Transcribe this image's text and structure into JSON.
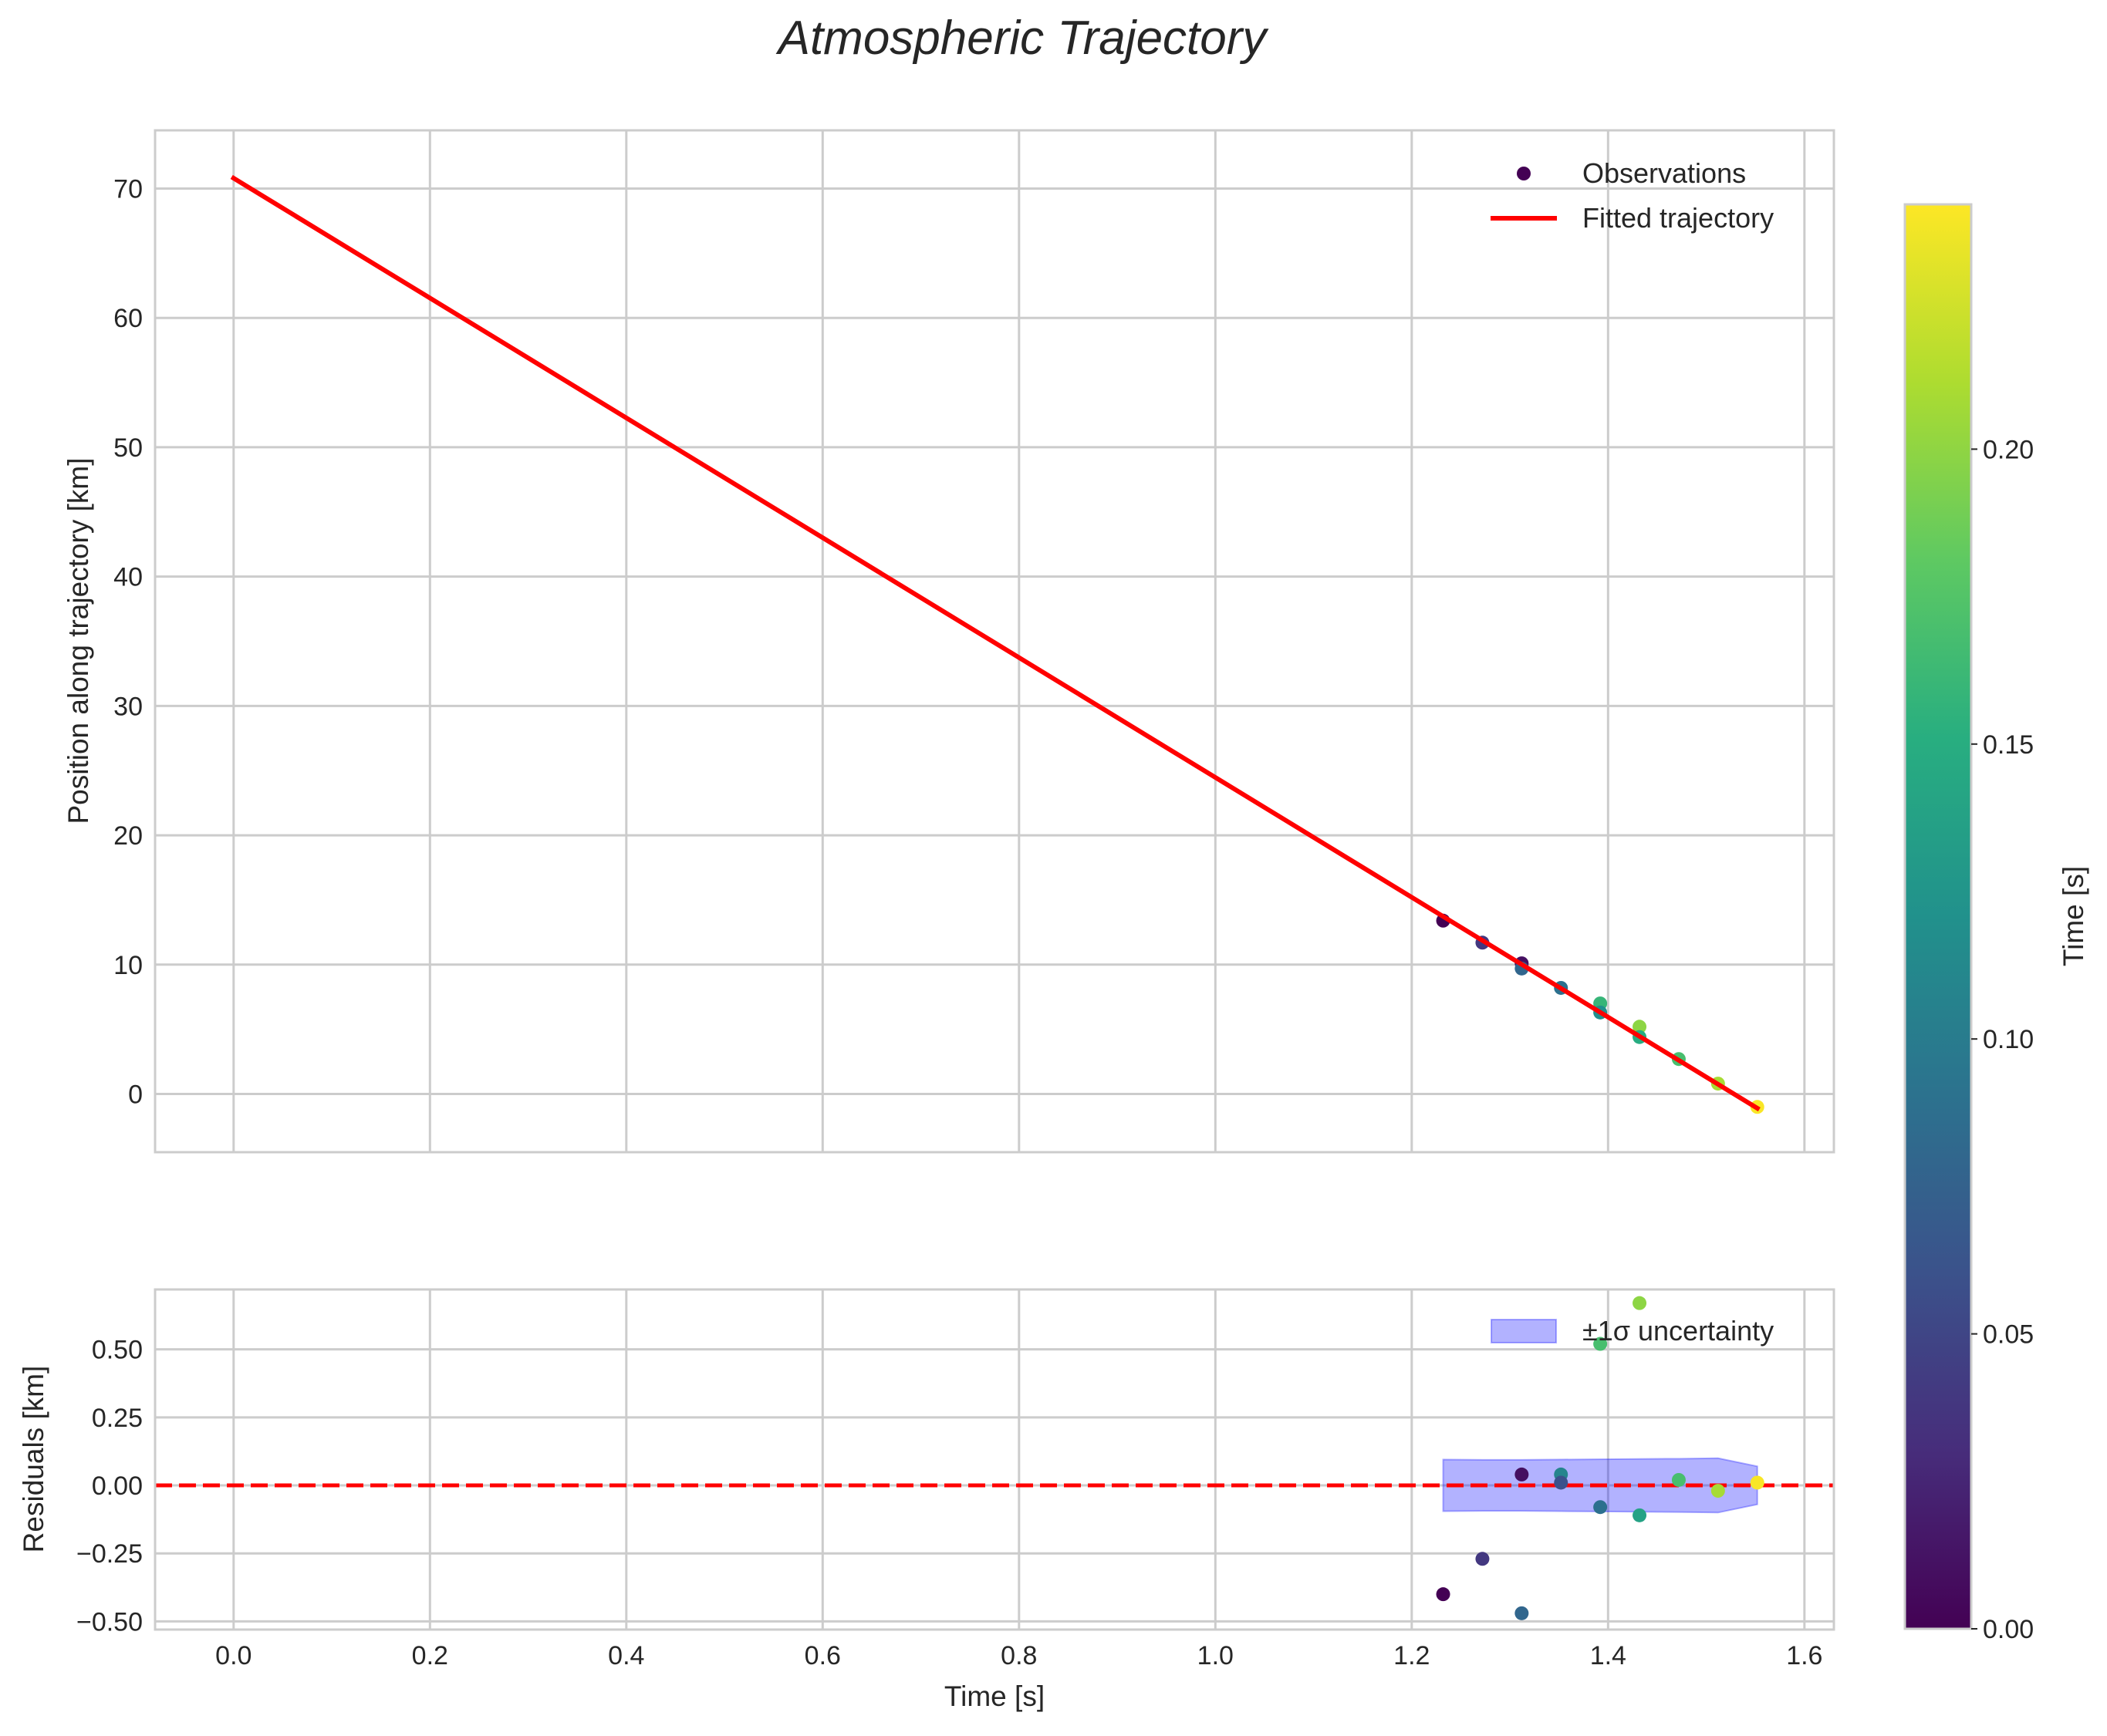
{
  "chart_data": {
    "title": "Atmospheric Trajectory",
    "colors": {
      "fit_line": "#ff0000",
      "zero_line": "#ff0000",
      "band_fill": "#0000ff",
      "grid": "#cccccc",
      "spine": "#cccccc"
    },
    "top": {
      "type": "scatter",
      "xlim": [
        -0.08,
        1.63
      ],
      "ylim": [
        -4.5,
        74.5
      ],
      "yticks": [
        0,
        10,
        20,
        30,
        40,
        50,
        60,
        70
      ],
      "ylabel": "Position along trajectory [km]",
      "observations": {
        "name": "Observations",
        "x": [
          1.232,
          1.272,
          1.312,
          1.312,
          1.352,
          1.392,
          1.392,
          1.432,
          1.432,
          1.472,
          1.512,
          1.552
        ],
        "y": [
          13.4,
          11.7,
          10.1,
          9.7,
          8.2,
          7.0,
          6.3,
          5.2,
          4.4,
          2.7,
          0.8,
          -1.0
        ],
        "t": [
          0.0,
          0.04,
          0.01,
          0.08,
          0.09,
          0.16,
          0.12,
          0.2,
          0.15,
          0.17,
          0.21,
          0.24
        ]
      },
      "fit": {
        "name": "Fitted trajectory",
        "x": [
          0.0,
          1.552
        ],
        "y": [
          70.8,
          -1.1
        ]
      }
    },
    "bottom": {
      "type": "scatter",
      "xlim": [
        -0.08,
        1.63
      ],
      "ylim": [
        -0.53,
        0.72
      ],
      "yticks": [
        -0.5,
        -0.25,
        0.0,
        0.25,
        0.5
      ],
      "ytick_labels": [
        "−0.50",
        "−0.25",
        "0.00",
        "0.25",
        "0.50"
      ],
      "ylabel": "Residuals [km]",
      "xticks": [
        0.0,
        0.2,
        0.4,
        0.6,
        0.8,
        1.0,
        1.2,
        1.4,
        1.6
      ],
      "xtick_labels": [
        "0.0",
        "0.2",
        "0.4",
        "0.6",
        "0.8",
        "1.0",
        "1.2",
        "1.4",
        "1.6"
      ],
      "xlabel": "Time [s]",
      "residuals": {
        "x": [
          1.232,
          1.272,
          1.312,
          1.312,
          1.352,
          1.352,
          1.392,
          1.392,
          1.432,
          1.432,
          1.472,
          1.512,
          1.552
        ],
        "y": [
          -0.4,
          -0.27,
          0.04,
          -0.47,
          0.04,
          0.01,
          0.52,
          -0.08,
          0.67,
          -0.11,
          0.02,
          -0.02,
          0.01
        ],
        "t": [
          0.0,
          0.04,
          0.01,
          0.08,
          0.11,
          0.06,
          0.17,
          0.09,
          0.2,
          0.14,
          0.17,
          0.21,
          0.24
        ]
      },
      "band": {
        "name": "±1σ uncertainty",
        "x": [
          1.232,
          1.272,
          1.312,
          1.352,
          1.392,
          1.432,
          1.472,
          1.512,
          1.552
        ],
        "upper": [
          0.095,
          0.094,
          0.094,
          0.095,
          0.096,
          0.097,
          0.098,
          0.1,
          0.07
        ],
        "lower": [
          -0.095,
          -0.094,
          -0.094,
          -0.095,
          -0.096,
          -0.097,
          -0.098,
          -0.1,
          -0.07
        ]
      },
      "zero_line": 0.0
    },
    "colorbar": {
      "label": "Time [s]",
      "range": [
        0.0,
        0.2415
      ],
      "ticks": [
        0.0,
        0.05,
        0.1,
        0.15,
        0.2
      ],
      "tick_labels": [
        "0.00",
        "0.05",
        "0.10",
        "0.15",
        "0.20"
      ],
      "colormap": "viridis"
    }
  }
}
